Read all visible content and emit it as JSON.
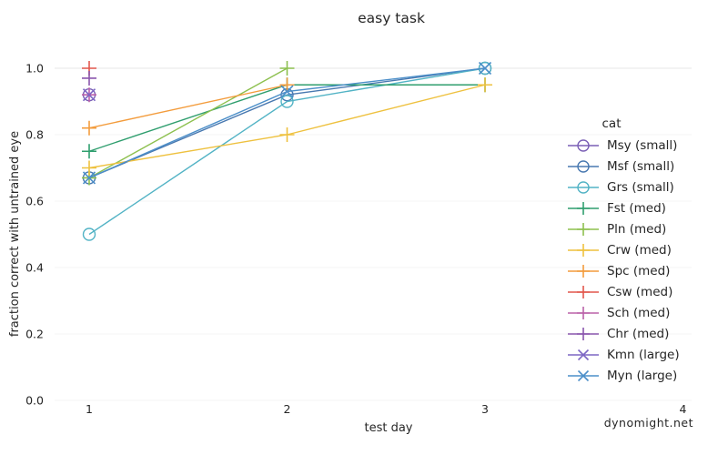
{
  "watermark": "dynomight.net",
  "chart_data": {
    "type": "line",
    "title": "easy task",
    "xlabel": "test day",
    "ylabel": "fraction correct with untrained eye",
    "legend_title": "cat",
    "legend_position": "right",
    "x_ticks": [
      1,
      2,
      3,
      4
    ],
    "y_ticks": [
      0.0,
      0.2,
      0.4,
      0.6,
      0.8,
      1.0
    ],
    "xlim": [
      0.85,
      4.15
    ],
    "ylim": [
      0.0,
      1.02
    ],
    "gridlines_y": [
      1.0
    ],
    "series": [
      {
        "label": "Msy (small)",
        "cat": "Msy",
        "group": "small",
        "marker": "circle",
        "color": "#7a5fb5",
        "points": [
          [
            1,
            0.92
          ]
        ]
      },
      {
        "label": "Msf (small)",
        "cat": "Msf",
        "group": "small",
        "marker": "circle",
        "color": "#4878b0",
        "points": [
          [
            1,
            0.67
          ],
          [
            2,
            0.92
          ],
          [
            3,
            1.0
          ]
        ]
      },
      {
        "label": "Grs (small)",
        "cat": "Grs",
        "group": "small",
        "marker": "circle",
        "color": "#52b3c5",
        "points": [
          [
            1,
            0.5
          ],
          [
            2,
            0.9
          ],
          [
            3,
            1.0
          ]
        ]
      },
      {
        "label": "Fst (med)",
        "cat": "Fst",
        "group": "med",
        "marker": "plus",
        "color": "#2f9e6e",
        "points": [
          [
            1,
            0.75
          ],
          [
            2,
            0.95
          ],
          [
            3,
            0.95
          ]
        ]
      },
      {
        "label": "Pln (med)",
        "cat": "Pln",
        "group": "med",
        "marker": "plus",
        "color": "#8dc04f",
        "points": [
          [
            1,
            0.67
          ],
          [
            2,
            1.0
          ]
        ]
      },
      {
        "label": "Crw (med)",
        "cat": "Crw",
        "group": "med",
        "marker": "plus",
        "color": "#eec13f",
        "points": [
          [
            1,
            0.7
          ],
          [
            2,
            0.8
          ],
          [
            3,
            0.95
          ]
        ]
      },
      {
        "label": "Spc (med)",
        "cat": "Spc",
        "group": "med",
        "marker": "plus",
        "color": "#f39c3d",
        "points": [
          [
            1,
            0.82
          ],
          [
            2,
            0.95
          ]
        ]
      },
      {
        "label": "Csw (med)",
        "cat": "Csw",
        "group": "med",
        "marker": "plus",
        "color": "#e2574c",
        "points": [
          [
            1,
            1.0
          ]
        ]
      },
      {
        "label": "Sch (med)",
        "cat": "Sch",
        "group": "med",
        "marker": "plus",
        "color": "#bb62a9",
        "points": [
          [
            1,
            0.92
          ]
        ]
      },
      {
        "label": "Chr (med)",
        "cat": "Chr",
        "group": "med",
        "marker": "plus",
        "color": "#8a56ad",
        "points": [
          [
            1,
            0.97
          ]
        ]
      },
      {
        "label": "Kmn (large)",
        "cat": "Kmn",
        "group": "large",
        "marker": "x",
        "color": "#7d66c4",
        "points": [
          [
            1,
            0.92
          ]
        ]
      },
      {
        "label": "Myn (large)",
        "cat": "Myn",
        "group": "large",
        "marker": "x",
        "color": "#4c8fc9",
        "points": [
          [
            1,
            0.67
          ],
          [
            2,
            0.93
          ],
          [
            3,
            1.0
          ]
        ]
      }
    ]
  }
}
